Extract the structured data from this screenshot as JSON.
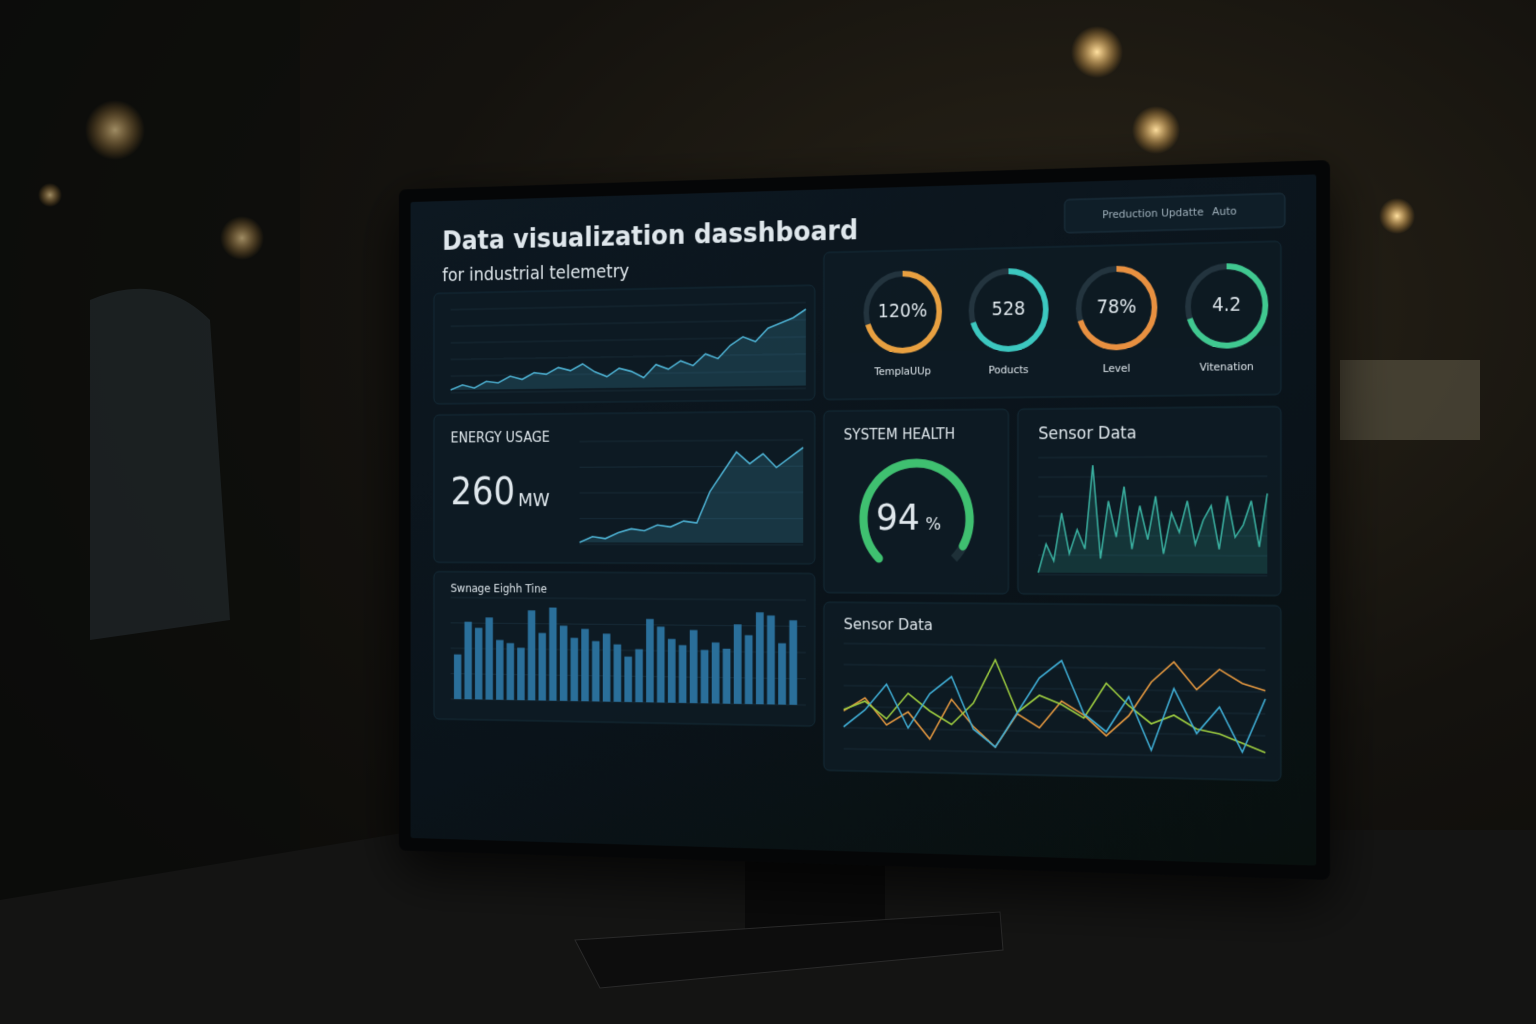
{
  "header": {
    "title": "Data visualization dasshboard",
    "subtitle": "for industrial telemetry"
  },
  "toolbar": {
    "button": "Preduction Updatte",
    "mode": "Auto"
  },
  "trend": {
    "color": "#4fb6d8",
    "values": [
      20,
      23,
      21,
      25,
      24,
      28,
      26,
      30,
      29,
      33,
      31,
      35,
      30,
      27,
      32,
      30,
      26,
      34,
      31,
      36,
      33,
      40,
      37,
      45,
      50,
      47,
      55,
      58,
      61,
      66
    ]
  },
  "gauges": [
    {
      "value": "120%",
      "label": "TemplaUUp",
      "color": "#e8a040"
    },
    {
      "value": "528",
      "label": "Poducts",
      "color": "#3cc8c0"
    },
    {
      "value": "78%",
      "label": "Level",
      "color": "#e89040"
    },
    {
      "value": "4.2",
      "label": "Vitenation",
      "color": "#40c890"
    }
  ],
  "energy": {
    "title": "ENERGY USAGE",
    "value": "260",
    "unit": "MW",
    "color": "#4fb6d8",
    "values": [
      12,
      15,
      14,
      17,
      19,
      18,
      21,
      20,
      23,
      22,
      38,
      48,
      58,
      52,
      57,
      50,
      55,
      60
    ]
  },
  "health": {
    "title": "SYSTEM HEALTH",
    "value": 94,
    "unit": "%",
    "range": [
      0,
      100
    ],
    "color": "#3fc070"
  },
  "sensor_a": {
    "title": "Sensor Data",
    "color": "#3ab0a0",
    "values": [
      30,
      42,
      35,
      55,
      38,
      48,
      40,
      75,
      36,
      60,
      45,
      66,
      40,
      58,
      44,
      62,
      38,
      55,
      47,
      60,
      42,
      52,
      58,
      40,
      62,
      45,
      50,
      60,
      41,
      63
    ]
  },
  "bars": {
    "title": "Swnage Eighh Tine",
    "color": "#2a6f9a",
    "values": [
      30,
      52,
      48,
      55,
      40,
      38,
      35,
      60,
      45,
      62,
      50,
      42,
      48,
      40,
      45,
      38,
      30,
      35,
      55,
      50,
      42,
      38,
      48,
      35,
      40,
      36,
      52,
      45,
      60,
      58,
      40,
      55
    ]
  },
  "sensor_b": {
    "title": "Sensor Data",
    "series": [
      {
        "color": "#e89a40",
        "values": [
          40,
          42,
          38,
          40,
          36,
          42,
          38,
          35,
          40,
          38,
          42,
          40,
          37,
          40,
          45,
          48,
          44,
          47,
          45,
          44
        ]
      },
      {
        "color": "#a0d040",
        "values": [
          48,
          50,
          46,
          52,
          48,
          45,
          50,
          60,
          48,
          52,
          50,
          47,
          55,
          50,
          46,
          48,
          45,
          44,
          42,
          40
        ]
      },
      {
        "color": "#40b0d8",
        "values": [
          30,
          32,
          35,
          30,
          34,
          36,
          30,
          28,
          32,
          36,
          38,
          32,
          30,
          34,
          28,
          35,
          30,
          33,
          28,
          34
        ]
      }
    ]
  }
}
